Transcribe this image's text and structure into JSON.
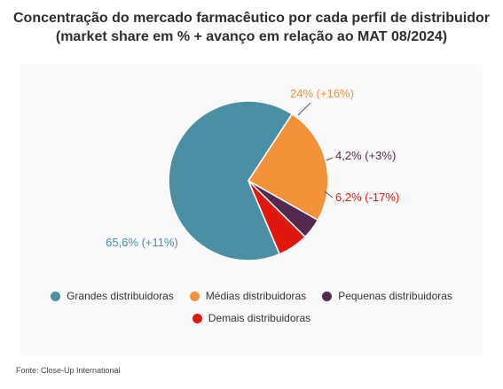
{
  "title_lines": [
    "Concentração do mercado farmacêutico por cada perfil de distribuidor",
    "(market share em % + avanço em relação ao MAT 08/2024)"
  ],
  "chart_data": {
    "type": "pie",
    "title": "Concentração do mercado farmacêutico por cada perfil de distribuidor (market share em % + avanço em relação ao MAT 08/2024)",
    "slices": [
      {
        "name": "Grandes distribuidoras",
        "value": 65.6,
        "label": "65,6% (+11%)",
        "color": "#4a8fa3",
        "label_color": "#4a8fa3"
      },
      {
        "name": "Médias distribuidoras",
        "value": 24,
        "label": "24% (+16%)",
        "color": "#f39238",
        "label_color": "#f39238"
      },
      {
        "name": "Pequenas distribuidoras",
        "value": 4.2,
        "label": "4,2% (+3%)",
        "color": "#53294f",
        "label_color": "#53294f"
      },
      {
        "name": "Demais distribuidoras",
        "value": 6.2,
        "label": "6,2% (-17%)",
        "color": "#e0170d",
        "label_color": "#e0170d"
      }
    ],
    "legend_position": "bottom"
  },
  "legend": {
    "row1": [
      {
        "label": "Grandes distribuidoras",
        "color": "#4a8fa3"
      },
      {
        "label": "Médias distribuidoras",
        "color": "#f39238"
      },
      {
        "label": "Pequenas distribuidoras",
        "color": "#53294f"
      }
    ],
    "row2": [
      {
        "label": "Demais distribuidoras",
        "color": "#e0170d"
      }
    ]
  },
  "source": "Fonte: Close-Up International"
}
